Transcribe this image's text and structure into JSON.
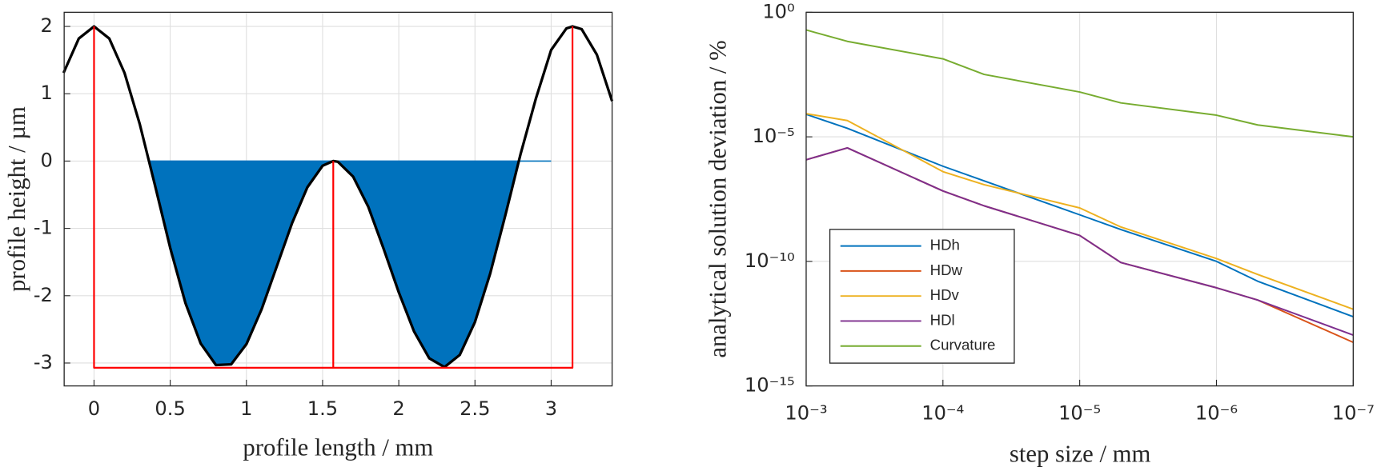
{
  "chart_data": [
    {
      "type": "line",
      "xlabel": "profile length / mm",
      "ylabel": "profile height / µm",
      "xlim": [
        -0.196,
        3.4
      ],
      "ylim": [
        -3.34,
        2.21
      ],
      "xticks": [
        0,
        0.5,
        1,
        1.5,
        2,
        2.5,
        3
      ],
      "yticks": [
        -3,
        -2,
        -1,
        0,
        1,
        2
      ],
      "grid": true,
      "series": [
        {
          "type": "area",
          "color": "#0072bd",
          "x": [
            0.37,
            0.4,
            0.5,
            0.6,
            0.7,
            0.8,
            0.9,
            1.0,
            1.1,
            1.2,
            1.3,
            1.4,
            1.5,
            1.57,
            1.6,
            1.7,
            1.8,
            1.9,
            2.0,
            2.1,
            2.2,
            2.3,
            2.4,
            2.5,
            2.6,
            2.7,
            2.78,
            3.0
          ],
          "values": [
            0,
            -0.36,
            -1.29,
            -2.11,
            -2.71,
            -3.03,
            -3.02,
            -2.72,
            -2.2,
            -1.56,
            -0.92,
            -0.39,
            -0.07,
            0,
            -0.01,
            -0.23,
            -0.68,
            -1.3,
            -1.95,
            -2.53,
            -2.93,
            -3.06,
            -2.88,
            -2.39,
            -1.67,
            -0.8,
            0,
            0
          ]
        },
        {
          "type": "line",
          "color": "#000000",
          "x": [
            -0.2,
            -0.1,
            0,
            0.1,
            0.2,
            0.3,
            0.4,
            0.5,
            0.6,
            0.7,
            0.8,
            0.9,
            1.0,
            1.1,
            1.2,
            1.3,
            1.4,
            1.5,
            1.57,
            1.6,
            1.7,
            1.8,
            1.9,
            2.0,
            2.1,
            2.2,
            2.3,
            2.4,
            2.5,
            2.6,
            2.7,
            2.8,
            2.9,
            3.0,
            3.1,
            3.14,
            3.2,
            3.3,
            3.4
          ],
          "values": [
            1.31,
            1.82,
            2,
            1.82,
            1.31,
            0.55,
            -0.36,
            -1.29,
            -2.11,
            -2.71,
            -3.03,
            -3.02,
            -2.72,
            -2.2,
            -1.56,
            -0.92,
            -0.39,
            -0.07,
            0,
            -0.01,
            -0.23,
            -0.68,
            -1.3,
            -1.95,
            -2.53,
            -2.93,
            -3.06,
            -2.88,
            -2.39,
            -1.67,
            -0.8,
            0.11,
            0.93,
            1.65,
            1.97,
            2,
            1.96,
            1.58,
            0.89
          ]
        },
        {
          "type": "line",
          "color": "#ff0000",
          "x": [
            0,
            0,
            3.14,
            3.14,
            null,
            1.57,
            1.57
          ],
          "values": [
            2,
            -3.07,
            -3.07,
            2,
            null,
            0,
            -3.07
          ]
        }
      ]
    },
    {
      "type": "line",
      "xlabel": "step size / mm",
      "ylabel": "analytical solution deviation / %",
      "xscale": "log",
      "yscale": "log",
      "xlim": [
        0.001,
        1e-07
      ],
      "ylim": [
        1e-15,
        1
      ],
      "xticks": [
        {
          "value": 0.001,
          "label": "10⁻³"
        },
        {
          "value": 0.0001,
          "label": "10⁻⁴"
        },
        {
          "value": 1e-05,
          "label": "10⁻⁵"
        },
        {
          "value": 1e-06,
          "label": "10⁻⁶"
        },
        {
          "value": 1e-07,
          "label": "10⁻⁷"
        }
      ],
      "yticks": [
        {
          "value": 1e-15,
          "label": "10⁻¹⁵"
        },
        {
          "value": 1e-10,
          "label": "10⁻¹⁰"
        },
        {
          "value": 1e-05,
          "label": "10⁻⁵"
        },
        {
          "value": 1,
          "label": "10⁰"
        }
      ],
      "grid": true,
      "legend": "lower left",
      "x": [
        0.001,
        0.0005,
        0.0001,
        5e-05,
        1e-05,
        5e-06,
        1e-06,
        5e-07,
        1e-07
      ],
      "series": [
        {
          "name": "HDh",
          "color": "#0072bd",
          "values": [
            8e-05,
            2.2e-05,
            6.6e-07,
            1.7e-07,
            7.4e-09,
            1.9e-09,
            1e-10,
            1.6e-11,
            6e-13
          ]
        },
        {
          "name": "HDw",
          "color": "#d95319",
          "values": [
            1.2e-06,
            3.6e-06,
            6.7e-08,
            1.7e-08,
            1.1e-09,
            9e-11,
            8.7e-12,
            2.8e-12,
            5.6e-14
          ]
        },
        {
          "name": "HDv",
          "color": "#edb120",
          "values": [
            8.5e-05,
            4.5e-05,
            4e-07,
            1.2e-07,
            1.4e-08,
            2.4e-09,
            1.3e-10,
            3e-11,
            1.2e-12
          ]
        },
        {
          "name": "HDl",
          "color": "#7e2f8e",
          "values": [
            1.2e-06,
            3.6e-06,
            6.7e-08,
            1.7e-08,
            1.1e-09,
            9e-11,
            8.7e-12,
            2.8e-12,
            1.1e-13
          ]
        },
        {
          "name": "Curvature",
          "color": "#77ac30",
          "values": [
            0.195,
            0.068,
            0.0135,
            0.0032,
            0.00063,
            0.00023,
            7.4e-05,
            3e-05,
            1e-05
          ]
        }
      ]
    }
  ]
}
